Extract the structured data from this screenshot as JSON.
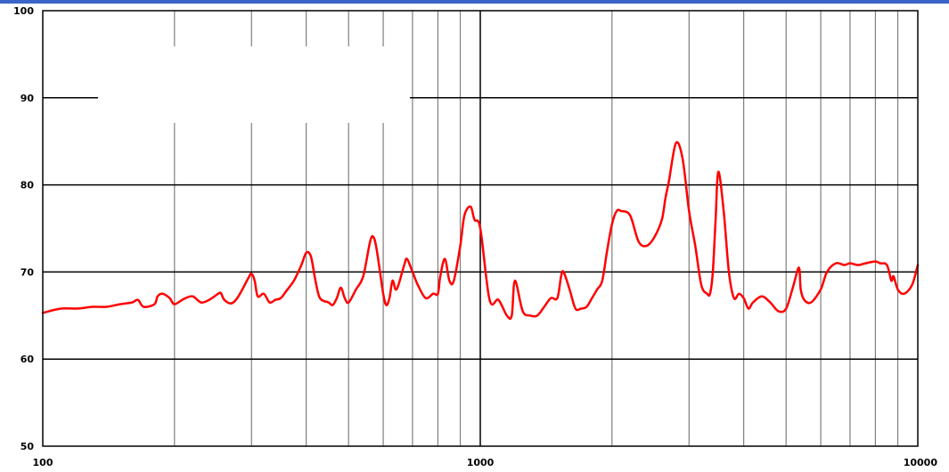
{
  "chart_data": {
    "type": "line",
    "title": "",
    "xlabel": "",
    "ylabel": "",
    "x_scale": "log",
    "xlim": [
      100,
      10000
    ],
    "ylim": [
      50,
      100
    ],
    "x_tick_labels": [
      "100",
      "1000",
      "10000"
    ],
    "y_tick_labels": [
      "100",
      "90",
      "80",
      "70",
      "60",
      "50"
    ],
    "grid": true,
    "colors": {
      "line": "#ff0000",
      "grid": "#7f7f7f",
      "major_grid": "#000000",
      "axis": "#000000",
      "top_strip": "#3a64c8"
    },
    "series": [
      {
        "x": [
          100,
          110,
          120,
          130,
          140,
          150,
          160,
          165,
          170,
          180,
          183,
          188,
          195,
          200,
          210,
          220,
          230,
          240,
          250,
          255,
          260,
          270,
          280,
          295,
          300,
          305,
          310,
          320,
          330,
          340,
          350,
          360,
          375,
          390,
          400,
          410,
          420,
          430,
          450,
          460,
          470,
          480,
          490,
          500,
          520,
          540,
          560,
          570,
          580,
          600,
          610,
          620,
          630,
          640,
          650,
          670,
          680,
          700,
          720,
          750,
          780,
          800,
          810,
          830,
          850,
          870,
          900,
          920,
          950,
          970,
          1000,
          1050,
          1100,
          1150,
          1180,
          1200,
          1250,
          1300,
          1350,
          1400,
          1450,
          1500,
          1530,
          1550,
          1600,
          1650,
          1700,
          1750,
          1800,
          1850,
          1900,
          1950,
          2000,
          2050,
          2100,
          2200,
          2300,
          2400,
          2500,
          2600,
          2650,
          2700,
          2800,
          2900,
          3000,
          3100,
          3200,
          3300,
          3350,
          3400,
          3450,
          3500,
          3600,
          3700,
          3800,
          3900,
          4000,
          4100,
          4200,
          4400,
          4600,
          4800,
          5000,
          5200,
          5350,
          5400,
          5500,
          5700,
          6000,
          6200,
          6500,
          6800,
          7000,
          7300,
          7600,
          8000,
          8200,
          8500,
          8700,
          8800,
          9000,
          9300,
          9700,
          10000
        ],
        "y": [
          65.3,
          65.8,
          65.8,
          66.0,
          66.0,
          66.3,
          66.5,
          66.8,
          66.0,
          66.3,
          67.2,
          67.5,
          67.0,
          66.3,
          66.9,
          67.2,
          66.5,
          66.8,
          67.4,
          67.6,
          66.8,
          66.4,
          67.2,
          69.3,
          69.8,
          69.0,
          67.2,
          67.5,
          66.5,
          66.8,
          67.0,
          67.8,
          69.0,
          70.8,
          72.2,
          71.8,
          69.0,
          67.0,
          66.5,
          66.2,
          67.0,
          68.2,
          67.0,
          66.5,
          68.0,
          69.5,
          73.5,
          74.0,
          72.5,
          67.5,
          66.2,
          67.0,
          69.0,
          68.0,
          68.5,
          70.8,
          71.5,
          70.0,
          68.5,
          67.0,
          67.5,
          67.5,
          69.5,
          71.5,
          69.0,
          69.0,
          73.0,
          76.5,
          77.5,
          76.0,
          75.0,
          66.8,
          66.8,
          65.0,
          65.0,
          69.0,
          65.5,
          65.0,
          65.0,
          66.0,
          67.0,
          67.0,
          69.5,
          70.0,
          68.0,
          65.8,
          65.8,
          66.0,
          67.0,
          68.0,
          69.0,
          72.5,
          75.5,
          77.0,
          77.0,
          76.5,
          73.5,
          73.0,
          74.0,
          76.0,
          78.5,
          80.5,
          84.8,
          83.0,
          77.0,
          73.0,
          68.5,
          67.5,
          67.5,
          70.0,
          76.0,
          81.5,
          77.0,
          70.0,
          67.0,
          67.5,
          67.0,
          65.8,
          66.5,
          67.2,
          66.5,
          65.5,
          65.8,
          68.5,
          70.5,
          68.0,
          66.8,
          66.5,
          68.0,
          70.0,
          71.0,
          70.8,
          71.0,
          70.8,
          71.0,
          71.2,
          71.0,
          70.8,
          69.0,
          69.5,
          68.0,
          67.5,
          68.5,
          70.8
        ]
      }
    ]
  }
}
